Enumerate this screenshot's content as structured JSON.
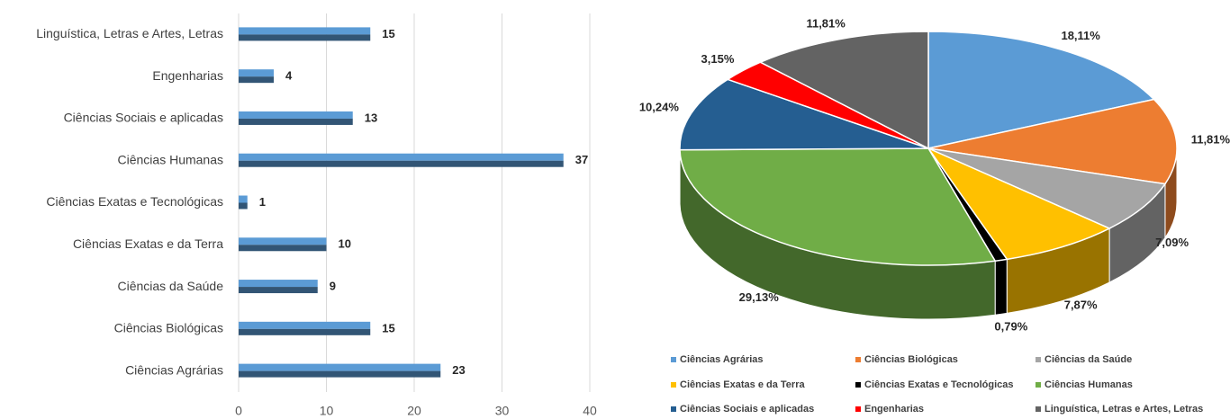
{
  "chart_data": [
    {
      "type": "bar",
      "categories": [
        "Linguística, Letras e Artes, Letras",
        "Engenharias",
        "Ciências Sociais e aplicadas",
        "Ciências Humanas",
        "Ciências Exatas e Tecnológicas",
        "Ciências Exatas e da Terra",
        "Ciências da Saúde",
        "Ciências Biológicas",
        "Ciências Agrárias"
      ],
      "values": [
        15,
        4,
        13,
        37,
        1,
        10,
        9,
        15,
        23
      ],
      "color": "#5b9bd5",
      "xlim": [
        0,
        40
      ],
      "xticks": [
        0,
        10,
        20,
        30,
        40
      ],
      "grid": true
    },
    {
      "type": "pie",
      "categories": [
        "Ciências Agrárias",
        "Ciências Biológicas",
        "Ciências da Saúde",
        "Ciências Exatas e da Terra",
        "Ciências Exatas e Tecnológicas",
        "Ciências Humanas",
        "Ciências Sociais e aplicadas",
        "Engenharias",
        "Linguística, Letras e Artes, Letras"
      ],
      "values": [
        18.11,
        11.81,
        7.09,
        7.87,
        0.79,
        29.13,
        10.24,
        3.15,
        11.81
      ],
      "value_labels": [
        "18,11%",
        "11,81%",
        "7,09%",
        "7,87%",
        "0,79%",
        "29,13%",
        "10,24%",
        "3,15%",
        "11,81%"
      ],
      "colors": [
        "#5b9bd5",
        "#ed7d31",
        "#a5a5a5",
        "#ffc000",
        "#000000",
        "#70ad47",
        "#255e91",
        "#ff0000",
        "#636363"
      ],
      "legend": "bottom"
    }
  ]
}
